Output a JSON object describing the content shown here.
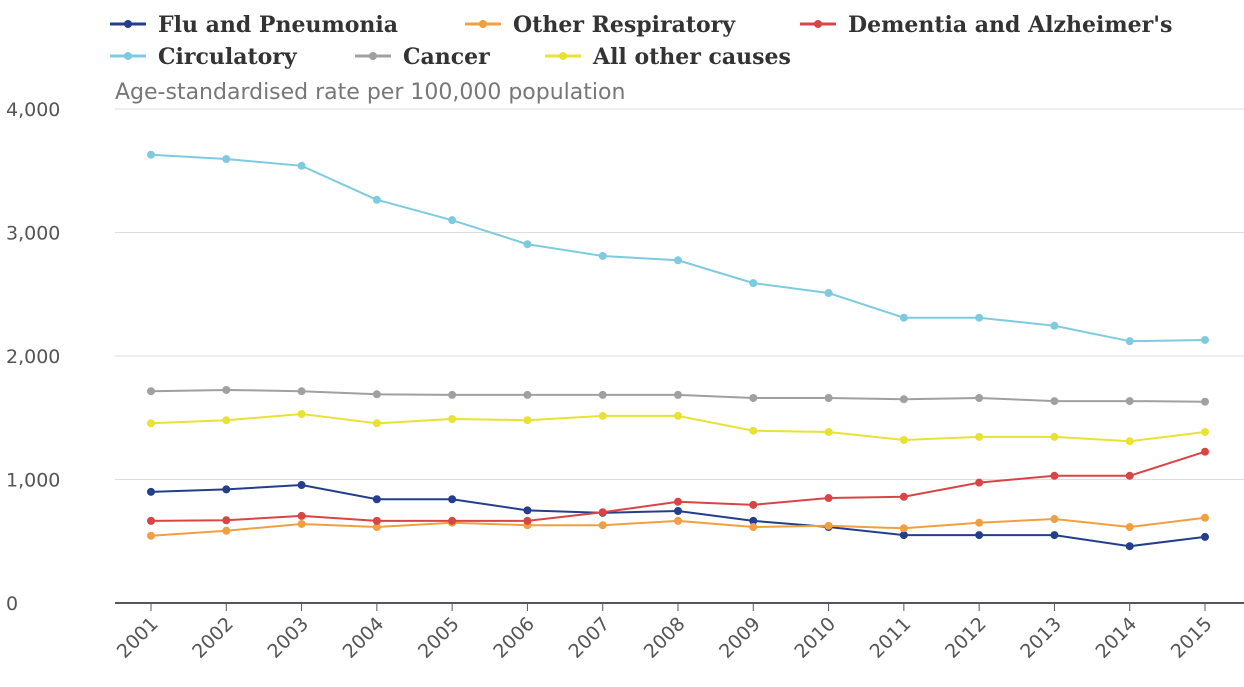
{
  "chart_data": {
    "type": "line",
    "subtitle": "Age-standardised rate per 100,000 population",
    "categories": [
      "2001",
      "2002",
      "2003",
      "2004",
      "2005",
      "2006",
      "2007",
      "2008",
      "2009",
      "2010",
      "2011",
      "2012",
      "2013",
      "2014",
      "2015"
    ],
    "series": [
      {
        "name": "Flu and Pneumonia",
        "color": "#233f8c",
        "values": [
          900,
          920,
          955,
          840,
          840,
          750,
          730,
          745,
          665,
          615,
          550,
          550,
          550,
          460,
          535
        ]
      },
      {
        "name": "Other Respiratory",
        "color": "#f0a040",
        "values": [
          545,
          585,
          640,
          615,
          650,
          630,
          630,
          665,
          615,
          625,
          605,
          650,
          680,
          615,
          690
        ]
      },
      {
        "name": "Dementia and Alzheimer's",
        "color": "#d94444",
        "values": [
          665,
          670,
          705,
          665,
          665,
          665,
          735,
          820,
          795,
          850,
          860,
          975,
          1030,
          1030,
          1225
        ]
      },
      {
        "name": "Circulatory",
        "color": "#7ecbdf",
        "values": [
          3630,
          3595,
          3540,
          3265,
          3100,
          2905,
          2810,
          2775,
          2590,
          2510,
          2310,
          2310,
          2245,
          2120,
          2130
        ]
      },
      {
        "name": "Cancer",
        "color": "#a0a0a0",
        "values": [
          1715,
          1725,
          1715,
          1690,
          1685,
          1685,
          1685,
          1685,
          1660,
          1660,
          1650,
          1660,
          1635,
          1635,
          1630
        ]
      },
      {
        "name": "All other causes",
        "color": "#e8e234",
        "values": [
          1455,
          1480,
          1530,
          1455,
          1490,
          1480,
          1515,
          1515,
          1395,
          1385,
          1320,
          1345,
          1345,
          1310,
          1385
        ]
      }
    ],
    "ylim": [
      0,
      4000
    ],
    "yticks": [
      0,
      {
        "value": 1000,
        "label": "1,000"
      },
      {
        "value": 2000,
        "label": "2,000"
      },
      {
        "value": 3000,
        "label": "3,000"
      },
      {
        "value": 4000,
        "label": "4,000"
      }
    ],
    "grid": true
  }
}
